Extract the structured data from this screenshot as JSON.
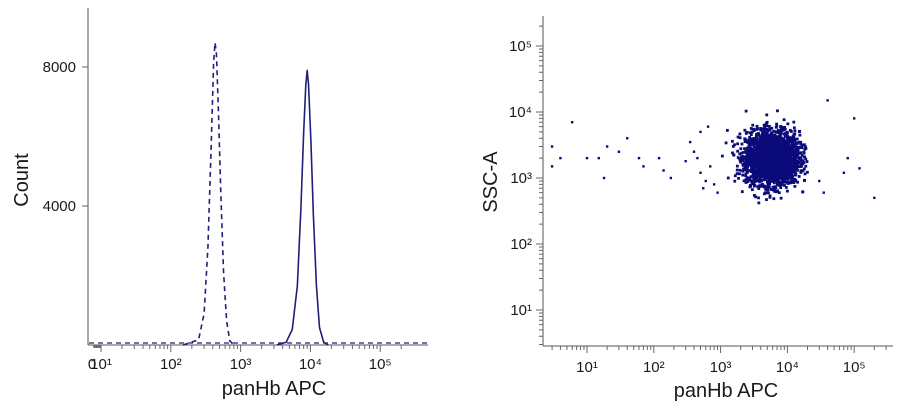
{
  "chart_data": [
    {
      "type": "histogram",
      "xlabel": "panHb APC",
      "ylabel": "Count",
      "x_scale": "biexponential",
      "x_tick_labels": [
        "0",
        "10¹",
        "10²",
        "10³",
        "10⁴",
        "10⁵"
      ],
      "x_tick_values": [
        0,
        10,
        100,
        1000,
        10000,
        100000
      ],
      "y_tick_labels": [
        "4000",
        "8000"
      ],
      "y_tick_values": [
        4000,
        8000
      ],
      "ylim": [
        0,
        9500
      ],
      "grid": false,
      "series": [
        {
          "line_style": "dashed",
          "color": "#1f1f7a",
          "points": [
            [
              150,
              0
            ],
            [
              250,
              150
            ],
            [
              300,
              900
            ],
            [
              340,
              2800
            ],
            [
              380,
              5800
            ],
            [
              410,
              8100
            ],
            [
              430,
              8700
            ],
            [
              450,
              8400
            ],
            [
              480,
              6800
            ],
            [
              520,
              4400
            ],
            [
              570,
              2100
            ],
            [
              630,
              700
            ],
            [
              700,
              120
            ],
            [
              800,
              0
            ]
          ]
        },
        {
          "line_style": "solid",
          "color": "#1f1f7a",
          "points": [
            [
              3300,
              0
            ],
            [
              4500,
              80
            ],
            [
              5500,
              450
            ],
            [
              6500,
              1700
            ],
            [
              7300,
              3900
            ],
            [
              8000,
              6100
            ],
            [
              8600,
              7500
            ],
            [
              9000,
              7900
            ],
            [
              9400,
              7500
            ],
            [
              10200,
              5800
            ],
            [
              11000,
              3800
            ],
            [
              12200,
              1700
            ],
            [
              13500,
              500
            ],
            [
              15500,
              80
            ],
            [
              18000,
              0
            ]
          ]
        }
      ]
    },
    {
      "type": "scatter",
      "xlabel": "panHb APC",
      "ylabel": "SSC-A",
      "x_scale": "log",
      "y_scale": "log",
      "x_tick_labels": [
        "10¹",
        "10²",
        "10³",
        "10⁴",
        "10⁵"
      ],
      "x_tick_values": [
        10,
        100,
        1000,
        10000,
        100000
      ],
      "y_tick_labels": [
        "10¹",
        "10²",
        "10³",
        "10⁴",
        "10⁵"
      ],
      "y_tick_values": [
        10,
        100,
        1000,
        10000,
        100000
      ],
      "xlim": [
        2.5,
        250000
      ],
      "ylim": [
        2.5,
        250000
      ],
      "grid": false,
      "color": "#0a0a7a",
      "population": {
        "center": [
          6000,
          2000
        ],
        "log10_spread": [
          0.2,
          0.2
        ],
        "range_x": [
          1000,
          20000
        ],
        "range_y": [
          400,
          20000
        ]
      },
      "outlier_points": [
        [
          6,
          7000
        ],
        [
          3,
          3000
        ],
        [
          3,
          1500
        ],
        [
          18,
          1000
        ],
        [
          10,
          2000
        ],
        [
          15,
          2000
        ],
        [
          4,
          2000
        ],
        [
          20,
          3000
        ],
        [
          30,
          2500
        ],
        [
          40,
          4000
        ],
        [
          60,
          2000
        ],
        [
          70,
          1500
        ],
        [
          120,
          2000
        ],
        [
          140,
          1300
        ],
        [
          180,
          1000
        ],
        [
          300,
          1800
        ],
        [
          350,
          3500
        ],
        [
          400,
          2500
        ],
        [
          450,
          2000
        ],
        [
          500,
          1200
        ],
        [
          550,
          700
        ],
        [
          600,
          900
        ],
        [
          700,
          1500
        ],
        [
          500,
          5000
        ],
        [
          650,
          6000
        ],
        [
          800,
          800
        ],
        [
          900,
          600
        ],
        [
          100000,
          8000
        ],
        [
          200000,
          500
        ],
        [
          120000,
          1400
        ],
        [
          70000,
          1200
        ],
        [
          40000,
          15000
        ],
        [
          30000,
          900
        ],
        [
          80000,
          2000
        ],
        [
          35000,
          600
        ]
      ]
    }
  ]
}
